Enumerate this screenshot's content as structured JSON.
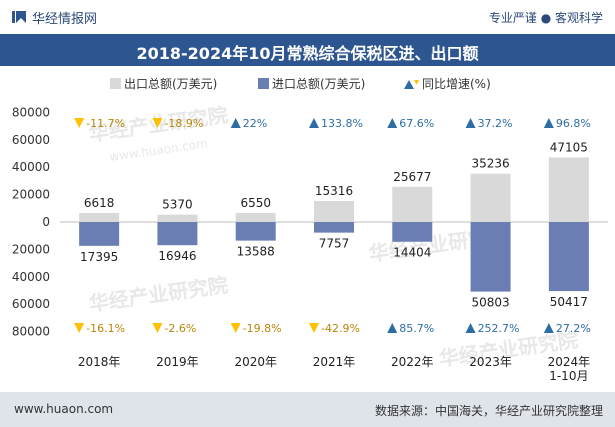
{
  "header": {
    "site_name": "华经情报网",
    "tagline": "专业严谨 ● 客观科学",
    "title": "2018-2024年10月常熟综合保税区进、出口额"
  },
  "footer": {
    "website": "www.huaon.com",
    "source": "数据来源：中国海关，华经产业研究院整理"
  },
  "watermark": "华经产业研究院",
  "watermark_url": "www.huaon.com",
  "colors": {
    "export_bar": "#d9d9d9",
    "import_bar": "#6a7eb4",
    "up_marker": "#2e6da4",
    "down_marker": "#ffc000",
    "title_band": "#2d5590"
  },
  "chart_data": {
    "type": "bar",
    "categories": [
      "2018年",
      "2019年",
      "2020年",
      "2021年",
      "2022年",
      "2023年",
      "2024年\n1-10月"
    ],
    "series": [
      {
        "name": "出口总额(万美元)",
        "values": [
          6618,
          5370,
          6550,
          15316,
          25677,
          35236,
          47105
        ]
      },
      {
        "name": "进口总额(万美元)",
        "values": [
          -17395,
          -16946,
          -13588,
          -7757,
          -14404,
          -50803,
          -50417
        ],
        "labels": [
          "17395",
          "16946",
          "13588",
          "7757",
          "14404",
          "50803",
          "50417"
        ]
      }
    ],
    "growth_legend": "同比增速(%)",
    "export_growth": [
      {
        "label": "-11.7%",
        "dir": "down"
      },
      {
        "label": "-18.9%",
        "dir": "down"
      },
      {
        "label": "22%",
        "dir": "up"
      },
      {
        "label": "133.8%",
        "dir": "up"
      },
      {
        "label": "67.6%",
        "dir": "up"
      },
      {
        "label": "37.2%",
        "dir": "up"
      },
      {
        "label": "96.8%",
        "dir": "up"
      }
    ],
    "import_growth": [
      {
        "label": "-16.1%",
        "dir": "down"
      },
      {
        "label": "-2.6%",
        "dir": "down"
      },
      {
        "label": "-19.8%",
        "dir": "down"
      },
      {
        "label": "-42.9%",
        "dir": "down"
      },
      {
        "label": "85.7%",
        "dir": "up"
      },
      {
        "label": "252.7%",
        "dir": "up"
      },
      {
        "label": "27.2%",
        "dir": "up"
      }
    ],
    "y_ticks": [
      "80000",
      "60000",
      "40000",
      "20000",
      "0",
      "20000",
      "40000",
      "60000",
      "80000"
    ],
    "ylim": [
      -80000,
      80000
    ],
    "legend_position": "top"
  }
}
